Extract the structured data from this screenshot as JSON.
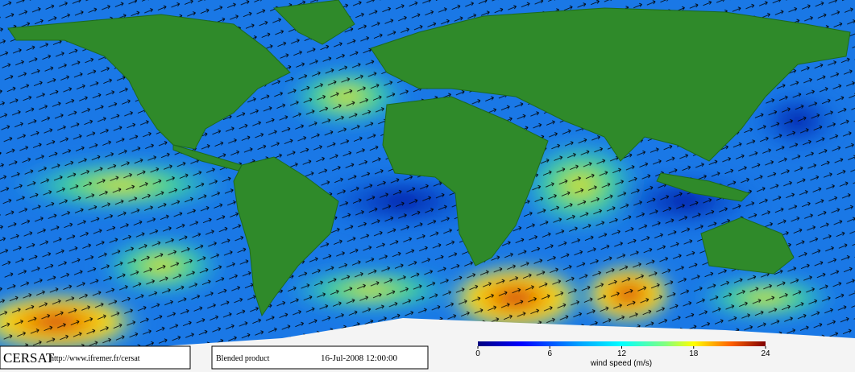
{
  "footer": {
    "logo": "CERSAT",
    "url": "http://www.ifremer.fr/cersat",
    "product": "Blended product",
    "date": "16-Jul-2008 12:00:00"
  },
  "colorbar": {
    "label": "wind speed (m/s)",
    "range": [
      0,
      24
    ],
    "ticks": [
      0,
      6,
      12,
      18,
      24
    ]
  }
}
